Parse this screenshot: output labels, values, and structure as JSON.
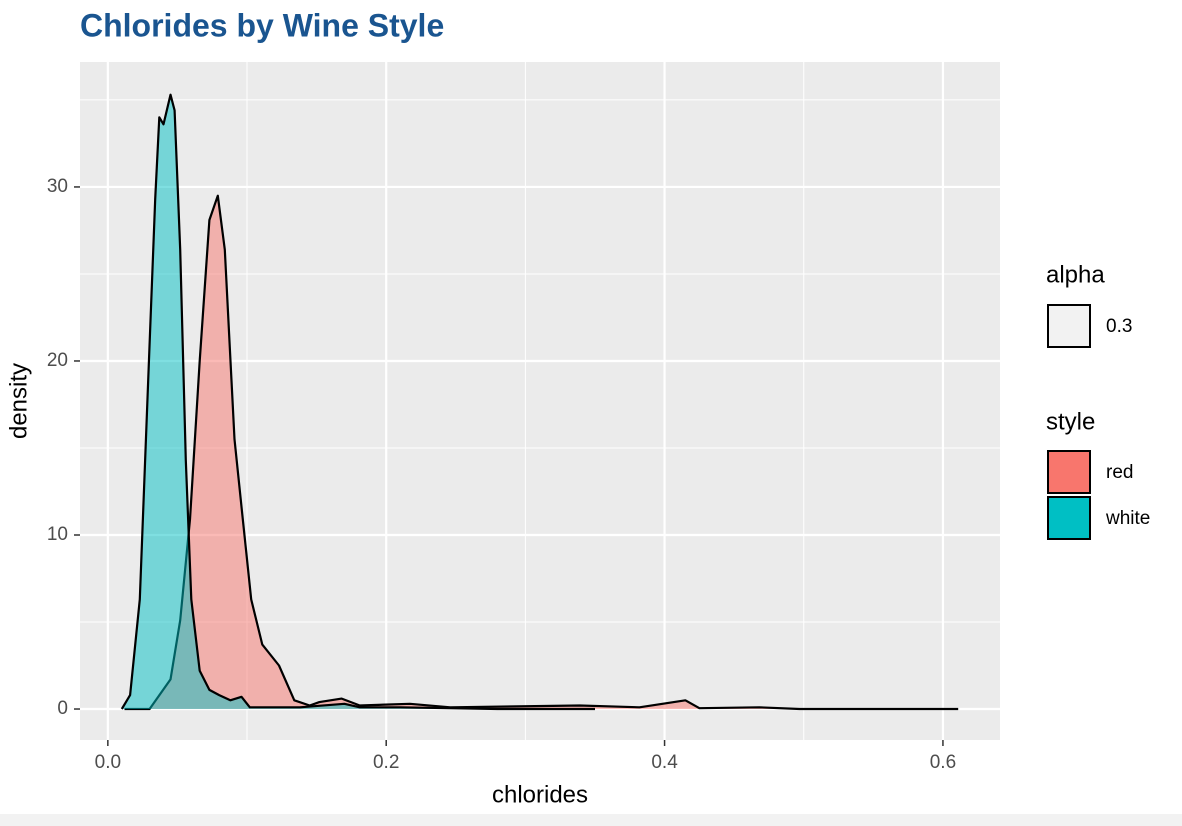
{
  "chart_data": {
    "type": "density",
    "title": "Chlorides by Wine Style",
    "x_label": "chlorides",
    "y_label": "density",
    "xlim": [
      -0.02,
      0.641
    ],
    "ylim": [
      -1.78,
      37.18
    ],
    "xticks": [
      {
        "value": 0,
        "label": "0.0"
      },
      0.2,
      0.4,
      0.6
    ],
    "yticks": [
      0,
      10,
      20,
      30
    ],
    "x_minor_grid": [
      0.1,
      0.3,
      0.5
    ],
    "y_minor_grid": [
      5,
      15,
      25,
      35
    ],
    "grid": true,
    "alpha_legend": {
      "title": "alpha",
      "labels": [
        "0.3"
      ]
    },
    "legend_title": "style",
    "legend_position": "right",
    "series": [
      {
        "name": "red",
        "color": "#F8766D",
        "x": [
          0.012,
          0.03,
          0.045,
          0.052,
          0.059,
          0.066,
          0.073,
          0.079,
          0.084,
          0.091,
          0.097,
          0.103,
          0.111,
          0.123,
          0.134,
          0.145,
          0.152,
          0.168,
          0.181,
          0.217,
          0.246,
          0.339,
          0.382,
          0.415,
          0.425,
          0.468,
          0.497,
          0.611
        ],
        "values": [
          0,
          0,
          1.7,
          5.1,
          10.9,
          20,
          28.1,
          29.5,
          26.4,
          15.5,
          10.9,
          6.3,
          3.7,
          2.5,
          0.5,
          0.2,
          0.4,
          0.6,
          0.2,
          0.3,
          0.1,
          0.2,
          0.1,
          0.5,
          0.05,
          0.1,
          0,
          0
        ]
      },
      {
        "name": "white",
        "color": "#00BFC4",
        "x": [
          0.01,
          0.016,
          0.023,
          0.029,
          0.034,
          0.037,
          0.04,
          0.045,
          0.048,
          0.052,
          0.056,
          0.06,
          0.066,
          0.073,
          0.08,
          0.088,
          0.096,
          0.102,
          0.138,
          0.17,
          0.181,
          0.21,
          0.28,
          0.35
        ],
        "values": [
          0,
          0.8,
          6.3,
          18.9,
          29.3,
          34,
          33.6,
          35.3,
          34.4,
          26.4,
          14.3,
          6.3,
          2.2,
          1.1,
          0.8,
          0.5,
          0.7,
          0.1,
          0.1,
          0.3,
          0.1,
          0.1,
          0,
          0
        ]
      }
    ]
  }
}
